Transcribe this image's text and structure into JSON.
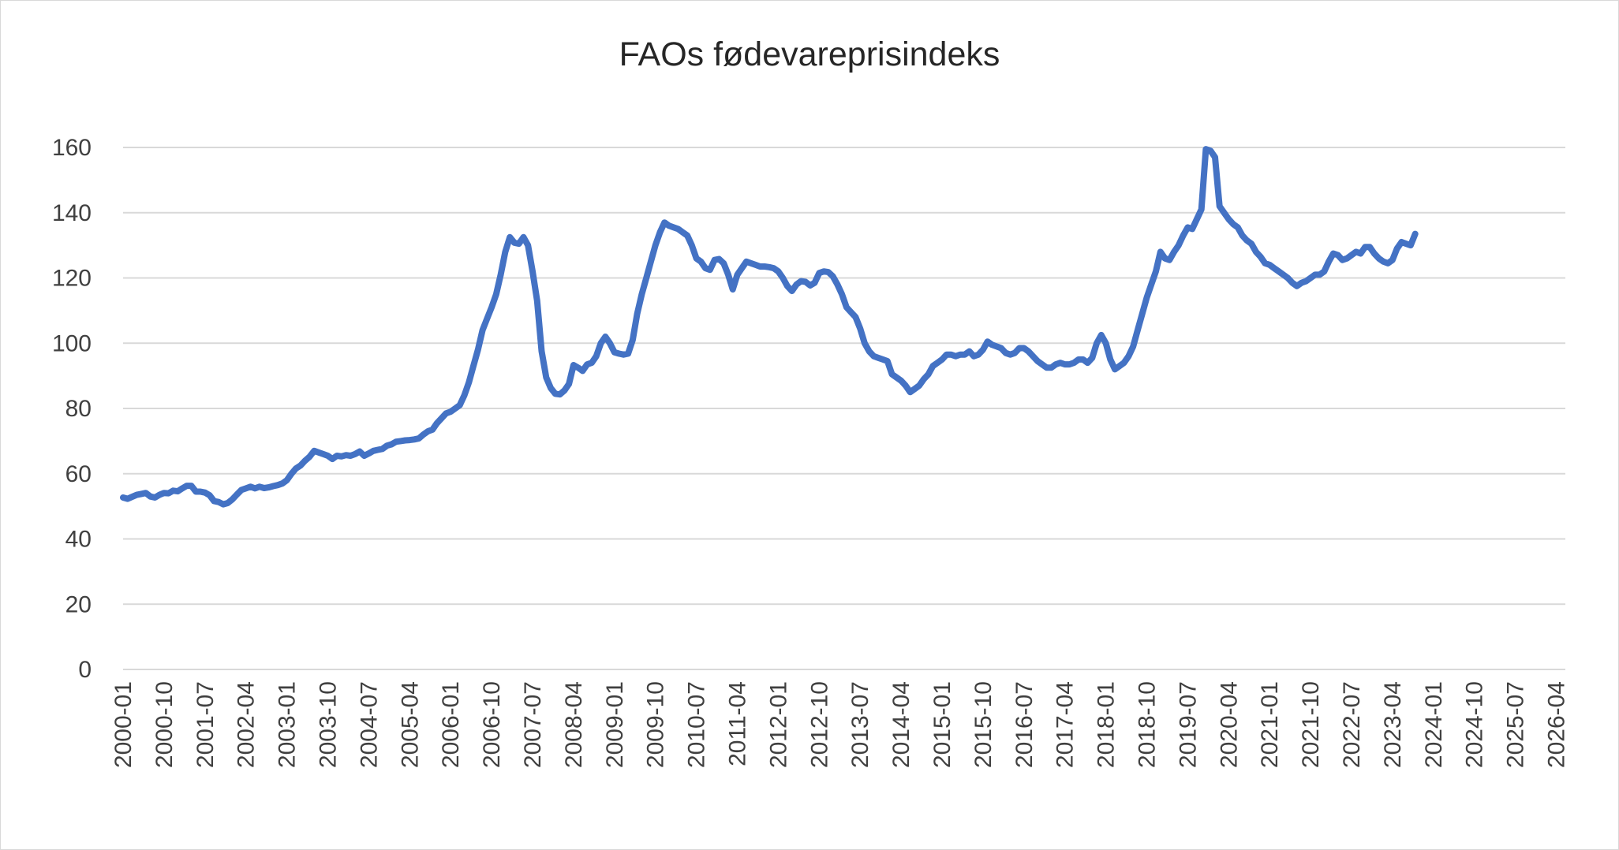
{
  "chart_data": {
    "type": "line",
    "title": "FAOs fødevareprisindeks",
    "xlabel": "",
    "ylabel": "",
    "ylim": [
      0,
      160
    ],
    "y_ticks": [
      "0",
      "20",
      "40",
      "60",
      "80",
      "100",
      "120",
      "140",
      "160"
    ],
    "x_tick_labels": [
      "2000-01",
      "2000-10",
      "2001-07",
      "2002-04",
      "2003-01",
      "2003-10",
      "2004-07",
      "2005-04",
      "2006-01",
      "2006-10",
      "2007-07",
      "2008-04",
      "2009-01",
      "2009-10",
      "2010-07",
      "2011-04",
      "2012-01",
      "2012-10",
      "2013-07",
      "2014-04",
      "2015-01",
      "2015-10",
      "2016-07",
      "2017-04",
      "2018-01",
      "2018-10",
      "2019-07",
      "2020-04",
      "2021-01",
      "2021-10",
      "2022-07",
      "2023-04",
      "2024-01",
      "2024-10",
      "2025-07",
      "2026-04"
    ],
    "grid": true,
    "legend": "none",
    "series_color": "#4472c4",
    "series": [
      {
        "x_start": "2000-01",
        "x_end": "2026-06",
        "values": [
          52.7,
          52.3,
          52.9,
          53.5,
          53.8,
          54.1,
          53.0,
          52.7,
          53.5,
          54.1,
          54.0,
          54.8,
          54.6,
          55.5,
          56.3,
          56.3,
          54.5,
          54.5,
          54.2,
          53.4,
          51.6,
          51.3,
          50.6,
          51.0,
          52.1,
          53.6,
          55.0,
          55.5,
          56.0,
          55.5,
          56.0,
          55.6,
          55.8,
          56.2,
          56.5,
          57.0,
          58.0,
          60.0,
          61.6,
          62.5,
          64.0,
          65.2,
          67.0,
          66.5,
          66.0,
          65.5,
          64.5,
          65.5,
          65.3,
          65.7,
          65.5,
          66.0,
          66.8,
          65.5,
          66.2,
          67.0,
          67.3,
          67.6,
          68.6,
          69.0,
          69.8,
          70.0,
          70.2,
          70.3,
          70.5,
          70.8,
          72.0,
          73.0,
          73.5,
          75.5,
          77.0,
          78.5,
          79.0,
          80.0,
          81.0,
          84.0,
          88.0,
          93.0,
          98.0,
          104.0,
          107.5,
          111.0,
          115.0,
          121.0,
          128.0,
          132.5,
          130.8,
          130.5,
          132.5,
          130.0,
          122.0,
          113.0,
          97.5,
          89.5,
          86.2,
          84.5,
          84.3,
          85.5,
          87.5,
          93.3,
          92.5,
          91.5,
          93.5,
          94.0,
          96.0,
          100.0,
          102.0,
          100.0,
          97.2,
          96.8,
          96.5,
          96.8,
          101.0,
          109.0,
          115.0,
          120.0,
          125.0,
          130.0,
          134.0,
          137.0,
          136.0,
          135.5,
          135.0,
          134.0,
          133.0,
          130.0,
          126.0,
          125.0,
          123.0,
          122.5,
          125.5,
          125.8,
          124.5,
          121.0,
          116.5,
          121.0,
          123.0,
          125.0,
          124.5,
          124.0,
          123.5,
          123.5,
          123.3,
          123.0,
          122.0,
          120.0,
          117.5,
          116.0,
          118.0,
          119.0,
          118.8,
          117.7,
          118.5,
          121.5,
          122.0,
          121.8,
          120.5,
          118.0,
          115.0,
          111.0,
          109.5,
          108.0,
          104.5,
          100.0,
          97.5,
          96.0,
          95.5,
          95.0,
          94.5,
          90.5,
          89.5,
          88.5,
          87.0,
          85.0,
          86.0,
          87.0,
          89.0,
          90.5,
          93.0,
          94.0,
          95.0,
          96.5,
          96.5,
          96.0,
          96.5,
          96.5,
          97.5,
          96.0,
          96.5,
          98.0,
          100.5,
          99.5,
          99.0,
          98.5,
          97.0,
          96.5,
          97.0,
          98.5,
          98.5,
          97.5,
          96.0,
          94.5,
          93.5,
          92.5,
          92.5,
          93.5,
          94.0,
          93.5,
          93.5,
          94.0,
          95.0,
          95.0,
          94.0,
          95.5,
          100.0,
          102.5,
          100.0,
          95.0,
          92.0,
          93.0,
          94.0,
          96.0,
          99.0,
          104.0,
          109.0,
          114.0,
          118.0,
          122.0,
          128.0,
          126.0,
          125.5,
          128.0,
          130.0,
          133.0,
          135.5,
          135.0,
          138.0,
          141.0,
          159.5,
          159.0,
          157.0,
          142.0,
          140.0,
          138.0,
          136.5,
          135.5,
          133.0,
          131.5,
          130.5,
          128.0,
          126.5,
          124.5,
          124.0,
          123.0,
          122.0,
          121.0,
          120.0,
          118.5,
          117.5,
          118.5,
          119.0,
          120.0,
          121.0,
          121.0,
          122.0,
          125.0,
          127.5,
          127.0,
          125.5,
          126.0,
          127.0,
          128.0,
          127.5,
          129.5,
          129.5,
          127.5,
          126.0,
          125.0,
          124.5,
          125.5,
          129.0,
          131.0,
          130.5,
          130.0,
          133.5
        ]
      }
    ]
  }
}
